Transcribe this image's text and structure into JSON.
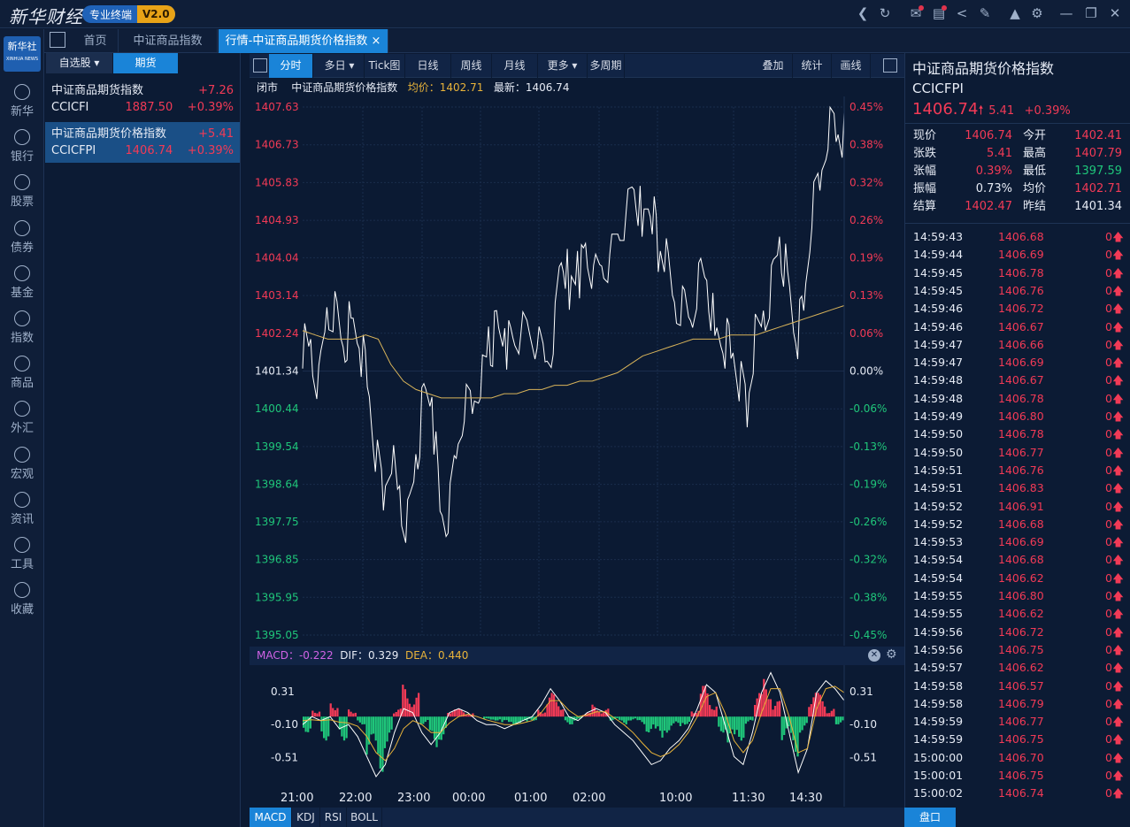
{
  "app": {
    "logo": "新华财经",
    "badge": "专业终端",
    "version": "V2.0"
  },
  "brand": {
    "line1": "新华社",
    "line2": "XINHUA NEWS"
  },
  "nav": [
    {
      "label": "新华",
      "icon": "xinhua-icon"
    },
    {
      "label": "银行",
      "icon": "bank-icon"
    },
    {
      "label": "股票",
      "icon": "stock-icon"
    },
    {
      "label": "债券",
      "icon": "bond-icon"
    },
    {
      "label": "基金",
      "icon": "fund-icon"
    },
    {
      "label": "指数",
      "icon": "index-icon"
    },
    {
      "label": "商品",
      "icon": "commodity-icon"
    },
    {
      "label": "外汇",
      "icon": "forex-icon"
    },
    {
      "label": "宏观",
      "icon": "macro-icon"
    },
    {
      "label": "资讯",
      "icon": "news-icon"
    },
    {
      "label": "工具",
      "icon": "tools-icon"
    },
    {
      "label": "收藏",
      "icon": "favorites-icon"
    }
  ],
  "tabs": [
    {
      "label": "首页"
    },
    {
      "label": "中证商品指数"
    },
    {
      "label": "行情-中证商品期货价格指数",
      "close": "×"
    }
  ],
  "left": {
    "tab1": "自选股",
    "tab2": "期货",
    "items": [
      {
        "name": "中证商品期货指数",
        "change": "+7.26",
        "code": "CCICFI",
        "price": "1887.50",
        "pct": "+0.39%"
      },
      {
        "name": "中证商品期货价格指数",
        "change": "+5.41",
        "code": "CCICFPI",
        "price": "1406.74",
        "pct": "+0.39%"
      }
    ]
  },
  "toolbar": {
    "buttons": [
      "分时",
      "多日",
      "Tick图",
      "日线",
      "周线",
      "月线",
      "更多",
      "多周期"
    ],
    "right": [
      "叠加",
      "统计",
      "画线"
    ]
  },
  "info": {
    "status": "闭市",
    "name": "中证商品期货价格指数",
    "avg": "均价：1402.71",
    "last": "最新：1406.74"
  },
  "chart_data": [
    {
      "type": "line",
      "title": "",
      "series": [
        {
          "name": "",
          "color": "#ffffff"
        },
        {
          "name": "均价",
          "color": "#d9b45a"
        }
      ],
      "y_left_ticks": [
        "1407.63",
        "1406.73",
        "1405.83",
        "1404.93",
        "1404.04",
        "1403.14",
        "1402.24",
        "1401.34",
        "1400.44",
        "1399.54",
        "1398.64",
        "1397.75",
        "1396.85",
        "1395.95",
        "1395.05"
      ],
      "y_right_ticks": [
        "0.45%",
        "0.38%",
        "0.32%",
        "0.26%",
        "0.19%",
        "0.13%",
        "0.06%",
        "0.00%",
        "-0.06%",
        "-0.13%",
        "-0.19%",
        "-0.26%",
        "-0.32%",
        "-0.38%",
        "-0.45%"
      ],
      "ylim": [
        1395.05,
        1407.63
      ],
      "prev_settle": 1401.34,
      "x_ticks": [
        "21:00",
        "22:00",
        "23:00",
        "00:00",
        "01:00",
        "02:00",
        "10:00",
        "11:30",
        "14:30"
      ],
      "price": [
        1402.0,
        1401.5,
        1401.0,
        1402.5,
        1403.0,
        1401.8,
        1402.6,
        1402.0,
        1401.2,
        1399.3,
        1398.5,
        1399.5,
        1398.0,
        1397.8,
        1399.0,
        1400.8,
        1400.6,
        1398.0,
        1397.6,
        1399.5,
        1400.5,
        1400.8,
        1401.3,
        1401.8,
        1402.3,
        1402.0,
        1401.9,
        1402.1,
        1402.3,
        1402.0,
        1401.8,
        1402.1,
        1404.4,
        1403.4,
        1403.6,
        1403.9,
        1403.5,
        1403.6,
        1404.0,
        1404.6,
        1405.2,
        1405.9,
        1404.9,
        1405.5,
        1404.3,
        1403.9,
        1402.5,
        1403.0,
        1402.3,
        1403.8,
        1403.5,
        1402.3,
        1402.0,
        1402.0,
        1401.1,
        1400.6,
        1402.1,
        1402.3,
        1403.5,
        1404.3,
        1403.6,
        1402.0,
        1402.9,
        1405.0,
        1406.0,
        1407.1,
        1407.4,
        1406.9
      ],
      "avg": [
        1402.3,
        1402.2,
        1402.1,
        1402.1,
        1402.1,
        1402.2,
        1402.1,
        1401.5,
        1401.1,
        1400.9,
        1400.8,
        1400.7,
        1400.7,
        1400.7,
        1400.7,
        1400.7,
        1400.8,
        1400.8,
        1400.9,
        1400.9,
        1401.0,
        1401.0,
        1401.1,
        1401.1,
        1401.2,
        1401.3,
        1401.5,
        1401.7,
        1401.8,
        1401.9,
        1402.0,
        1402.1,
        1402.1,
        1402.1,
        1402.2,
        1402.2,
        1402.2,
        1402.3,
        1402.4,
        1402.5,
        1402.6,
        1402.7,
        1402.8,
        1402.9
      ]
    },
    {
      "type": "bar",
      "title": "MACD",
      "indicators": {
        "macd": "MACD：-0.222",
        "dif": "DIF：0.329",
        "dea": "DEA：0.440"
      },
      "y_ticks": [
        "0.31",
        "-0.10",
        "-0.51"
      ],
      "ylim": [
        -0.85,
        0.6
      ],
      "hist": [
        -0.2,
        0.1,
        -0.3,
        0.2,
        -0.3,
        0.1,
        -0.1,
        -0.5,
        -0.7,
        -0.4,
        0.1,
        0.4,
        0.3,
        -0.1,
        -0.4,
        -0.3,
        0.1,
        0.1,
        0.05,
        0.0,
        -0.05,
        -0.05,
        -0.1,
        -0.1,
        -0.1,
        -0.05,
        0.1,
        0.3,
        0.2,
        -0.1,
        -0.05,
        0.05,
        0.15,
        0.1,
        -0.05,
        -0.1,
        -0.05,
        -0.1,
        -0.2,
        -0.3,
        -0.2,
        -0.15,
        -0.1,
        0.1,
        0.4,
        0.2,
        -0.2,
        -0.4,
        -0.3,
        -0.1,
        0.3,
        0.5,
        0.2,
        -0.3,
        -0.5,
        -0.2,
        0.3,
        0.3,
        0.1,
        -0.1
      ],
      "dif": [
        -0.1,
        0.0,
        -0.05,
        0.0,
        -0.15,
        -0.1,
        -0.25,
        -0.5,
        -0.75,
        -0.6,
        -0.2,
        0.1,
        0.05,
        -0.2,
        -0.35,
        -0.2,
        0.05,
        0.1,
        0.05,
        -0.05,
        -0.1,
        -0.1,
        -0.15,
        -0.1,
        -0.05,
        0.0,
        0.15,
        0.35,
        0.2,
        0.0,
        -0.05,
        0.05,
        0.1,
        0.05,
        -0.1,
        -0.2,
        -0.3,
        -0.45,
        -0.6,
        -0.55,
        -0.4,
        -0.3,
        -0.15,
        0.1,
        0.4,
        0.3,
        -0.1,
        -0.5,
        -0.6,
        -0.2,
        0.3,
        0.55,
        0.3,
        -0.2,
        -0.7,
        -0.4,
        0.3,
        0.45,
        0.35,
        0.2
      ],
      "dea": [
        -0.05,
        -0.04,
        -0.05,
        -0.04,
        -0.07,
        -0.08,
        -0.12,
        -0.25,
        -0.45,
        -0.55,
        -0.4,
        -0.15,
        -0.05,
        -0.1,
        -0.2,
        -0.2,
        -0.08,
        0.0,
        0.03,
        0.0,
        -0.04,
        -0.07,
        -0.1,
        -0.1,
        -0.08,
        -0.05,
        0.05,
        0.2,
        0.2,
        0.08,
        0.0,
        0.02,
        0.06,
        0.06,
        -0.02,
        -0.1,
        -0.2,
        -0.33,
        -0.45,
        -0.5,
        -0.45,
        -0.35,
        -0.2,
        0.0,
        0.25,
        0.3,
        0.05,
        -0.3,
        -0.45,
        -0.3,
        0.05,
        0.35,
        0.35,
        0.0,
        -0.45,
        -0.4,
        0.1,
        0.35,
        0.38,
        0.3
      ]
    }
  ],
  "bottom_tabs": [
    "MACD",
    "KDJ",
    "RSI",
    "BOLL"
  ],
  "right": {
    "name": "中证商品期货价格指数",
    "code": "CCICFPI",
    "price": "1406.74",
    "change": "5.41",
    "pct": "+0.39%",
    "quotes": [
      [
        "现价",
        "1406.74",
        "今开",
        "1402.41"
      ],
      [
        "张跌",
        "5.41",
        "最高",
        "1407.79"
      ],
      [
        "张幅",
        "0.39%",
        "最低",
        "1397.59"
      ],
      [
        "振幅",
        "0.73%",
        "均价",
        "1402.71"
      ],
      [
        "结算",
        "1402.47",
        "昨结",
        "1401.34"
      ]
    ],
    "ticks": [
      [
        "14:59:43",
        "1406.68"
      ],
      [
        "14:59:44",
        "1406.69"
      ],
      [
        "14:59:45",
        "1406.78"
      ],
      [
        "14:59:45",
        "1406.76"
      ],
      [
        "14:59:46",
        "1406.72"
      ],
      [
        "14:59:46",
        "1406.67"
      ],
      [
        "14:59:47",
        "1406.66"
      ],
      [
        "14:59:47",
        "1406.69"
      ],
      [
        "14:59:48",
        "1406.67"
      ],
      [
        "14:59:48",
        "1406.78"
      ],
      [
        "14:59:49",
        "1406.80"
      ],
      [
        "14:59:50",
        "1406.78"
      ],
      [
        "14:59:50",
        "1406.77"
      ],
      [
        "14:59:51",
        "1406.76"
      ],
      [
        "14:59:51",
        "1406.83"
      ],
      [
        "14:59:52",
        "1406.91"
      ],
      [
        "14:59:52",
        "1406.68"
      ],
      [
        "14:59:53",
        "1406.69"
      ],
      [
        "14:59:54",
        "1406.68"
      ],
      [
        "14:59:54",
        "1406.62"
      ],
      [
        "14:59:55",
        "1406.80"
      ],
      [
        "14:59:55",
        "1406.62"
      ],
      [
        "14:59:56",
        "1406.72"
      ],
      [
        "14:59:56",
        "1406.75"
      ],
      [
        "14:59:57",
        "1406.62"
      ],
      [
        "14:59:58",
        "1406.57"
      ],
      [
        "14:59:58",
        "1406.79"
      ],
      [
        "14:59:59",
        "1406.77"
      ],
      [
        "14:59:59",
        "1406.75"
      ],
      [
        "15:00:00",
        "1406.70"
      ],
      [
        "15:00:01",
        "1406.75"
      ],
      [
        "15:00:02",
        "1406.74"
      ]
    ],
    "tick_vol": "0",
    "bottom_tab": "盘口"
  }
}
